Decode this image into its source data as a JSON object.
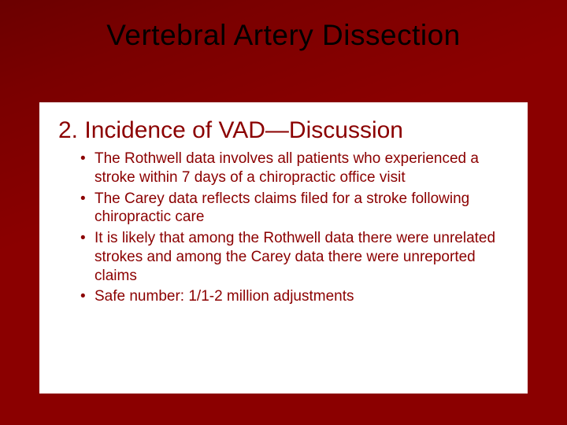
{
  "slide": {
    "background_color": "#8b0000",
    "background_gradient_start": "#6b0000",
    "title": {
      "text": "Vertebral Artery Dissection",
      "color": "#000000",
      "fontsize": 37,
      "fontweight": 400
    },
    "content_box": {
      "background_color": "#ffffff",
      "subheading": {
        "text": "2. Incidence of VAD—Discussion",
        "color": "#8b0000",
        "fontsize": 30
      },
      "bullets": {
        "color": "#8b0000",
        "fontsize": 19,
        "items": [
          "The Rothwell data involves all patients who experienced a stroke within 7 days of a chiropractic office visit",
          "The Carey data reflects claims filed for a stroke following chiropractic care",
          "It is likely that among the Rothwell data there were unrelated strokes and among the Carey data there were unreported claims",
          "Safe number: 1/1-2 million adjustments"
        ]
      }
    }
  }
}
